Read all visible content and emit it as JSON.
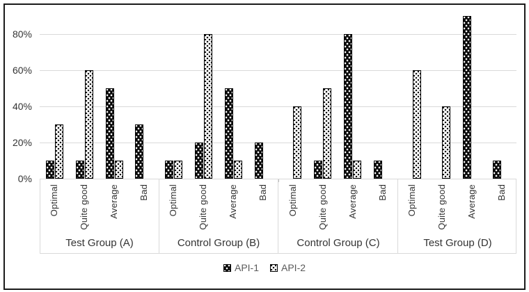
{
  "chart_data": {
    "type": "bar",
    "title": "",
    "unit": "%",
    "y_axis": {
      "tick_labels": [
        "0%",
        "20%",
        "40%",
        "60%",
        "80%"
      ],
      "tick_values": [
        0,
        20,
        40,
        60,
        80
      ],
      "max": 90
    },
    "categories": [
      "Optimal",
      "Quite good",
      "Average",
      "Bad"
    ],
    "groups": [
      "Test Group (A)",
      "Control Group (B)",
      "Control Group (C)",
      "Test Group (D)"
    ],
    "series": [
      {
        "name": "API-1",
        "pattern": "black-with-white-dots",
        "values_by_group": [
          [
            10,
            10,
            50,
            30
          ],
          [
            10,
            20,
            50,
            20
          ],
          [
            0,
            10,
            80,
            10
          ],
          [
            0,
            0,
            90,
            10
          ]
        ]
      },
      {
        "name": "API-2",
        "pattern": "white-with-black-dots",
        "values_by_group": [
          [
            30,
            60,
            10,
            0
          ],
          [
            10,
            80,
            10,
            0
          ],
          [
            40,
            50,
            10,
            0
          ],
          [
            60,
            40,
            0,
            0
          ]
        ]
      }
    ],
    "legend": {
      "position": "bottom",
      "entries": [
        "API-1",
        "API-2"
      ]
    },
    "grid": true,
    "colors": {
      "api1_fill": "#000000",
      "api1_dots": "#ffffff",
      "api2_fill": "#ffffff",
      "api2_dots": "#000000",
      "gridline": "#d9d9d9",
      "axis_line": "#bfbfbf",
      "text": "#333333",
      "legend_text": "#595959",
      "frame_border": "#1a1a1a"
    }
  }
}
